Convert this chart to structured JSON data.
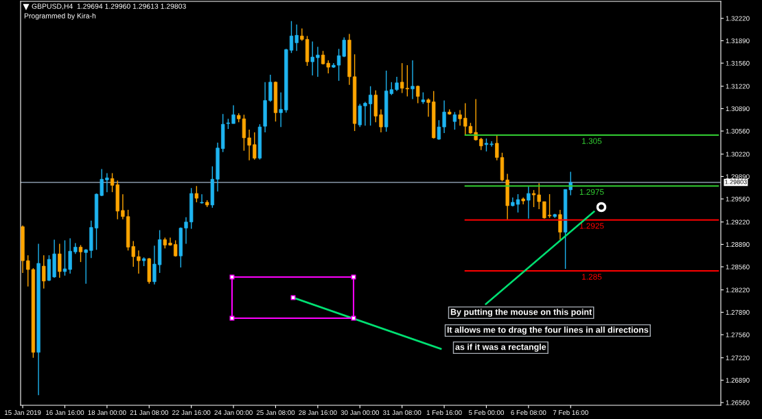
{
  "chart_data": {
    "type": "candlestick",
    "title": "GBPUSD,H4  1.29694 1.29960 1.29613 1.29803",
    "subtitle": "Programmed by Kira-h",
    "categories": [
      "15 Jan 2019",
      null,
      null,
      null,
      null,
      null,
      null,
      null,
      "16 Jan 16:00",
      null,
      null,
      null,
      null,
      null,
      null,
      null,
      "18 Jan 00:00",
      null,
      null,
      null,
      null,
      null,
      null,
      null,
      "21 Jan 08:00",
      null,
      null,
      null,
      null,
      null,
      null,
      null,
      "22 Jan 16:00",
      null,
      null,
      null,
      null,
      null,
      null,
      null,
      "24 Jan 00:00",
      null,
      null,
      null,
      null,
      null,
      null,
      null,
      "25 Jan 08:00",
      null,
      null,
      null,
      null,
      null,
      null,
      null,
      "28 Jan 16:00",
      null,
      null,
      null,
      null,
      null,
      null,
      null,
      "30 Jan 00:00",
      null,
      null,
      null,
      null,
      null,
      null,
      null,
      "31 Jan 08:00",
      null,
      null,
      null,
      null,
      null,
      null,
      null,
      "1 Feb 16:00",
      null,
      null,
      null,
      null,
      null,
      null,
      null,
      "5 Feb 00:00",
      null,
      null,
      null,
      null,
      null,
      null,
      null,
      "6 Feb 08:00",
      null,
      null,
      null,
      null,
      null,
      null,
      null,
      "7 Feb 16:00",
      null,
      null,
      null,
      null,
      null,
      null,
      null,
      null,
      null,
      null,
      null,
      null,
      null,
      null,
      null,
      null,
      null,
      null,
      null,
      null,
      null,
      null,
      null,
      null,
      null,
      null,
      null,
      null
    ],
    "ohlc": [
      [
        1.2915,
        1.2917,
        1.2847,
        1.2865
      ],
      [
        1.2865,
        1.2873,
        1.2827,
        1.2852
      ],
      [
        1.2852,
        1.2854,
        1.2722,
        1.273
      ],
      [
        1.273,
        1.289,
        1.2667,
        1.2861
      ],
      [
        1.2857,
        1.2873,
        1.2824,
        1.2835
      ],
      [
        1.2836,
        1.2873,
        1.2835,
        1.2867
      ],
      [
        1.2841,
        1.2896,
        1.284,
        1.2875
      ],
      [
        1.2875,
        1.289,
        1.284,
        1.2849
      ],
      [
        1.2849,
        1.2895,
        1.2843,
        1.2853
      ],
      [
        1.2852,
        1.2898,
        1.2846,
        1.2879
      ],
      [
        1.2878,
        1.2891,
        1.2875,
        1.2885
      ],
      [
        1.2885,
        1.2888,
        1.2863,
        1.2878
      ],
      [
        1.2877,
        1.2882,
        1.2831,
        1.2881
      ],
      [
        1.288,
        1.2924,
        1.2869,
        1.2914
      ],
      [
        1.2913,
        1.2964,
        1.2881,
        1.2963
      ],
      [
        1.2961,
        1.3,
        1.296,
        1.2985
      ],
      [
        1.2984,
        1.2994,
        1.2966,
        1.2987
      ],
      [
        1.2986,
        1.2994,
        1.2966,
        1.2976
      ],
      [
        1.2977,
        1.2983,
        1.2926,
        1.2938
      ],
      [
        1.2939,
        1.2963,
        1.2926,
        1.293
      ],
      [
        1.293,
        1.294,
        1.288,
        1.2885
      ],
      [
        1.2886,
        1.2894,
        1.2856,
        1.2871
      ],
      [
        1.2871,
        1.288,
        1.2846,
        1.2865
      ],
      [
        1.2865,
        1.287,
        1.2857,
        1.2868
      ],
      [
        1.2868,
        1.2869,
        1.2831,
        1.2834
      ],
      [
        1.2834,
        1.2887,
        1.283,
        1.286
      ],
      [
        1.2859,
        1.291,
        1.2847,
        1.2896
      ],
      [
        1.2896,
        1.2899,
        1.2883,
        1.2888
      ],
      [
        1.2891,
        1.2899,
        1.2887,
        1.2888
      ],
      [
        1.2889,
        1.2895,
        1.2871,
        1.2872
      ],
      [
        1.2872,
        1.2914,
        1.2855,
        1.2913
      ],
      [
        1.2913,
        1.2929,
        1.289,
        1.2922
      ],
      [
        1.2922,
        1.2972,
        1.2912,
        1.2964
      ],
      [
        1.2964,
        1.2975,
        1.2951,
        1.2957
      ],
      [
        1.295,
        1.2963,
        1.2949,
        1.2951
      ],
      [
        1.2951,
        1.2954,
        1.2944,
        1.2947
      ],
      [
        1.2947,
        1.3004,
        1.2943,
        1.2985
      ],
      [
        1.2985,
        1.3039,
        1.2967,
        1.3031
      ],
      [
        1.303,
        1.3081,
        1.3025,
        1.3066
      ],
      [
        1.3067,
        1.3074,
        1.3059,
        1.3068
      ],
      [
        1.3067,
        1.3094,
        1.3067,
        1.308
      ],
      [
        1.3079,
        1.3082,
        1.3069,
        1.3074
      ],
      [
        1.3074,
        1.308,
        1.3027,
        1.3046
      ],
      [
        1.3046,
        1.3058,
        1.3013,
        1.3035
      ],
      [
        1.3036,
        1.3054,
        1.3014,
        1.3016
      ],
      [
        1.3016,
        1.3066,
        1.3014,
        1.3062
      ],
      [
        1.3063,
        1.3128,
        1.3054,
        1.3101
      ],
      [
        1.3101,
        1.3139,
        1.3099,
        1.3128
      ],
      [
        1.3128,
        1.3129,
        1.307,
        1.3083
      ],
      [
        1.3083,
        1.3113,
        1.3062,
        1.3088
      ],
      [
        1.3087,
        1.3177,
        1.3083,
        1.3176
      ],
      [
        1.3175,
        1.3218,
        1.3171,
        1.3196
      ],
      [
        1.3186,
        1.3213,
        1.3174,
        1.3197
      ],
      [
        1.3196,
        1.3207,
        1.3189,
        1.3191
      ],
      [
        1.3191,
        1.3196,
        1.3152,
        1.3158
      ],
      [
        1.3158,
        1.3188,
        1.3138,
        1.3165
      ],
      [
        1.3164,
        1.318,
        1.3136,
        1.3168
      ],
      [
        1.3168,
        1.3174,
        1.3154,
        1.3155
      ],
      [
        1.3156,
        1.316,
        1.3141,
        1.315
      ],
      [
        1.315,
        1.3156,
        1.3149,
        1.3153
      ],
      [
        1.3153,
        1.3177,
        1.313,
        1.3167
      ],
      [
        1.3166,
        1.3194,
        1.3165,
        1.319
      ],
      [
        1.319,
        1.3199,
        1.3124,
        1.3136
      ],
      [
        1.3136,
        1.3169,
        1.3056,
        1.3067
      ],
      [
        1.3065,
        1.3096,
        1.3062,
        1.3093
      ],
      [
        1.3093,
        1.3099,
        1.3064,
        1.3097
      ],
      [
        1.3096,
        1.3122,
        1.3064,
        1.3109
      ],
      [
        1.3109,
        1.3116,
        1.3069,
        1.3078
      ],
      [
        1.308,
        1.3088,
        1.3054,
        1.3062
      ],
      [
        1.3062,
        1.3145,
        1.3055,
        1.3115
      ],
      [
        1.3111,
        1.3128,
        1.3109,
        1.3117
      ],
      [
        1.3117,
        1.3136,
        1.3115,
        1.3127
      ],
      [
        1.3128,
        1.3156,
        1.3112,
        1.3119
      ],
      [
        1.3119,
        1.3153,
        1.3107,
        1.3118
      ],
      [
        1.3118,
        1.316,
        1.3103,
        1.3122
      ],
      [
        1.3122,
        1.3123,
        1.3097,
        1.3107
      ],
      [
        1.3099,
        1.3113,
        1.3096,
        1.3102
      ],
      [
        1.3102,
        1.3104,
        1.3077,
        1.3098
      ],
      [
        1.3099,
        1.3115,
        1.3045,
        1.3046
      ],
      [
        1.3044,
        1.3072,
        1.3043,
        1.3062
      ],
      [
        1.3062,
        1.3101,
        1.3053,
        1.3084
      ],
      [
        1.3084,
        1.3088,
        1.308,
        1.3081
      ],
      [
        1.307,
        1.3084,
        1.3058,
        1.308
      ],
      [
        1.308,
        1.3087,
        1.3064,
        1.3074
      ],
      [
        1.3075,
        1.3097,
        1.305,
        1.3063
      ],
      [
        1.3063,
        1.3068,
        1.3052,
        1.3053
      ],
      [
        1.3054,
        1.3103,
        1.3042,
        1.3043
      ],
      [
        1.3044,
        1.3046,
        1.3028,
        1.3034
      ],
      [
        1.3036,
        1.3045,
        1.3026,
        1.3038
      ],
      [
        1.3036,
        1.3041,
        1.3033,
        1.3037
      ],
      [
        1.3038,
        1.3051,
        1.3013,
        1.3017
      ],
      [
        1.3017,
        1.3024,
        1.2982,
        1.2984
      ],
      [
        1.2984,
        1.2993,
        1.2926,
        1.2946
      ],
      [
        1.2946,
        1.2958,
        1.2945,
        1.2951
      ],
      [
        1.2948,
        1.2963,
        1.2936,
        1.2955
      ],
      [
        1.2956,
        1.2958,
        1.2948,
        1.2953
      ],
      [
        1.2954,
        1.2974,
        1.2927,
        1.2964
      ],
      [
        1.2964,
        1.2969,
        1.2944,
        1.2962
      ],
      [
        1.2962,
        1.2979,
        1.2941,
        1.2952
      ],
      [
        1.2952,
        1.2952,
        1.2927,
        1.2928
      ],
      [
        1.2932,
        1.2963,
        1.2928,
        1.2931
      ],
      [
        1.293,
        1.2934,
        1.2928,
        1.2933
      ],
      [
        1.2933,
        1.294,
        1.2896,
        1.2907
      ],
      [
        1.2907,
        1.297,
        1.2853,
        1.297
      ],
      [
        1.29694,
        1.2996,
        1.29613,
        1.29803
      ],
      null,
      null,
      null,
      null,
      null,
      null,
      null,
      null,
      null,
      null,
      null,
      null,
      null,
      null,
      null,
      null,
      null,
      null,
      null,
      null,
      null,
      null,
      null,
      null,
      null,
      null,
      null,
      null
    ],
    "series": [
      {
        "type": "line",
        "name": "1.305",
        "color": "#32cd32",
        "values": [
          null,
          null,
          null,
          null,
          null,
          null,
          null,
          null,
          null,
          null,
          null,
          null,
          null,
          null,
          null,
          null,
          null,
          null,
          null,
          null,
          null,
          null,
          null,
          null,
          null,
          null,
          null,
          null,
          null,
          null,
          null,
          null,
          null,
          null,
          null,
          null,
          null,
          null,
          null,
          null,
          null,
          null,
          null,
          null,
          null,
          null,
          null,
          null,
          null,
          null,
          null,
          null,
          null,
          null,
          null,
          null,
          null,
          null,
          null,
          null,
          null,
          null,
          null,
          null,
          null,
          null,
          null,
          null,
          null,
          null,
          null,
          null,
          null,
          null,
          null,
          null,
          null,
          null,
          null,
          null,
          null,
          null,
          null,
          null,
          1.305,
          1.305,
          1.305,
          1.305,
          1.305,
          1.305,
          1.305,
          1.305,
          1.305,
          1.305,
          1.305,
          1.305,
          1.305,
          1.305,
          1.305,
          1.305,
          1.305,
          1.305,
          1.305,
          1.305,
          1.305,
          1.305,
          1.305,
          1.305,
          1.305,
          1.305,
          1.305,
          1.305,
          1.305,
          1.305,
          1.305,
          1.305,
          1.305,
          1.305,
          1.305,
          1.305,
          1.305,
          1.305,
          1.305,
          1.305,
          1.305,
          1.305,
          1.305,
          1.305,
          1.305,
          1.305,
          1.305,
          1.305,
          1.305
        ]
      },
      {
        "type": "line",
        "name": "1.2975",
        "color": "#32cd32",
        "values": [
          null,
          null,
          null,
          null,
          null,
          null,
          null,
          null,
          null,
          null,
          null,
          null,
          null,
          null,
          null,
          null,
          null,
          null,
          null,
          null,
          null,
          null,
          null,
          null,
          null,
          null,
          null,
          null,
          null,
          null,
          null,
          null,
          null,
          null,
          null,
          null,
          null,
          null,
          null,
          null,
          null,
          null,
          null,
          null,
          null,
          null,
          null,
          null,
          null,
          null,
          null,
          null,
          null,
          null,
          null,
          null,
          null,
          null,
          null,
          null,
          null,
          null,
          null,
          null,
          null,
          null,
          null,
          null,
          null,
          null,
          null,
          null,
          null,
          null,
          null,
          null,
          null,
          null,
          null,
          null,
          null,
          null,
          null,
          null,
          1.2975,
          1.2975,
          1.2975,
          1.2975,
          1.2975,
          1.2975,
          1.2975,
          1.2975,
          1.2975,
          1.2975,
          1.2975,
          1.2975,
          1.2975,
          1.2975,
          1.2975,
          1.2975,
          1.2975,
          1.2975,
          1.2975,
          1.2975,
          1.2975,
          1.2975,
          1.2975,
          1.2975,
          1.2975,
          1.2975,
          1.2975,
          1.2975,
          1.2975,
          1.2975,
          1.2975,
          1.2975,
          1.2975,
          1.2975,
          1.2975,
          1.2975,
          1.2975,
          1.2975,
          1.2975,
          1.2975,
          1.2975,
          1.2975,
          1.2975,
          1.2975,
          1.2975,
          1.2975,
          1.2975,
          1.2975,
          1.2975
        ]
      },
      {
        "type": "line",
        "name": "1.2925",
        "color": "#ff0000",
        "values": [
          null,
          null,
          null,
          null,
          null,
          null,
          null,
          null,
          null,
          null,
          null,
          null,
          null,
          null,
          null,
          null,
          null,
          null,
          null,
          null,
          null,
          null,
          null,
          null,
          null,
          null,
          null,
          null,
          null,
          null,
          null,
          null,
          null,
          null,
          null,
          null,
          null,
          null,
          null,
          null,
          null,
          null,
          null,
          null,
          null,
          null,
          null,
          null,
          null,
          null,
          null,
          null,
          null,
          null,
          null,
          null,
          null,
          null,
          null,
          null,
          null,
          null,
          null,
          null,
          null,
          null,
          null,
          null,
          null,
          null,
          null,
          null,
          null,
          null,
          null,
          null,
          null,
          null,
          null,
          null,
          null,
          null,
          null,
          null,
          1.2925,
          1.2925,
          1.2925,
          1.2925,
          1.2925,
          1.2925,
          1.2925,
          1.2925,
          1.2925,
          1.2925,
          1.2925,
          1.2925,
          1.2925,
          1.2925,
          1.2925,
          1.2925,
          1.2925,
          1.2925,
          1.2925,
          1.2925,
          1.2925,
          1.2925,
          1.2925,
          1.2925,
          1.2925,
          1.2925,
          1.2925,
          1.2925,
          1.2925,
          1.2925,
          1.2925,
          1.2925,
          1.2925,
          1.2925,
          1.2925,
          1.2925,
          1.2925,
          1.2925,
          1.2925,
          1.2925,
          1.2925,
          1.2925,
          1.2925,
          1.2925,
          1.2925,
          1.2925,
          1.2925,
          1.2925,
          1.2925
        ]
      },
      {
        "type": "line",
        "name": "1.285",
        "color": "#ff0000",
        "values": [
          null,
          null,
          null,
          null,
          null,
          null,
          null,
          null,
          null,
          null,
          null,
          null,
          null,
          null,
          null,
          null,
          null,
          null,
          null,
          null,
          null,
          null,
          null,
          null,
          null,
          null,
          null,
          null,
          null,
          null,
          null,
          null,
          null,
          null,
          null,
          null,
          null,
          null,
          null,
          null,
          null,
          null,
          null,
          null,
          null,
          null,
          null,
          null,
          null,
          null,
          null,
          null,
          null,
          null,
          null,
          null,
          null,
          null,
          null,
          null,
          null,
          null,
          null,
          null,
          null,
          null,
          null,
          null,
          null,
          null,
          null,
          null,
          null,
          null,
          null,
          null,
          null,
          null,
          null,
          null,
          null,
          null,
          null,
          null,
          1.285,
          1.285,
          1.285,
          1.285,
          1.285,
          1.285,
          1.285,
          1.285,
          1.285,
          1.285,
          1.285,
          1.285,
          1.285,
          1.285,
          1.285,
          1.285,
          1.285,
          1.285,
          1.285,
          1.285,
          1.285,
          1.285,
          1.285,
          1.285,
          1.285,
          1.285,
          1.285,
          1.285,
          1.285,
          1.285,
          1.285,
          1.285,
          1.285,
          1.285,
          1.285,
          1.285,
          1.285,
          1.285,
          1.285,
          1.285,
          1.285,
          1.285,
          1.285,
          1.285,
          1.285,
          1.285,
          1.285,
          1.285,
          1.285
        ]
      }
    ],
    "ylim": [
      1.2652,
      1.3247
    ],
    "yticks": [
      {
        "value": 1.3222,
        "label": "1.32220"
      },
      {
        "value": 1.3189,
        "label": "1.31890"
      },
      {
        "value": 1.3156,
        "label": "1.31560"
      },
      {
        "value": 1.3122,
        "label": "1.31220"
      },
      {
        "value": 1.3089,
        "label": "1.30890"
      },
      {
        "value": 1.3056,
        "label": "1.30560"
      },
      {
        "value": 1.3022,
        "label": "1.30220"
      },
      {
        "value": 1.2989,
        "label": "1.29890"
      },
      {
        "value": 1.2956,
        "label": "1.29560"
      },
      {
        "value": 1.2922,
        "label": "1.29220"
      },
      {
        "value": 1.2889,
        "label": "1.28890"
      },
      {
        "value": 1.2856,
        "label": "1.28560"
      },
      {
        "value": 1.2822,
        "label": "1.28220"
      },
      {
        "value": 1.2789,
        "label": "1.27890"
      },
      {
        "value": 1.2756,
        "label": "1.27560"
      },
      {
        "value": 1.2722,
        "label": "1.27220"
      },
      {
        "value": 1.2689,
        "label": "1.26890"
      },
      {
        "value": 1.2656,
        "label": "1.26560"
      }
    ],
    "ref_lines": [
      {
        "axis": "y",
        "value": 1.29803,
        "label": "1.29803",
        "color": "#8899aa"
      }
    ],
    "annotations": [
      "By putting the mouse on this point",
      "It allows me to drag the four lines in all directions",
      "as if it was a rectangle"
    ],
    "grid": false,
    "legend": false
  }
}
